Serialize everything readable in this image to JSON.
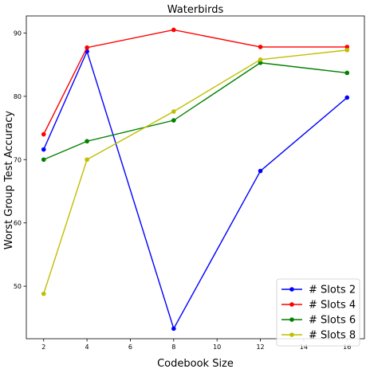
{
  "chart_data": {
    "type": "line",
    "title": "Waterbirds",
    "xlabel": "Codebook Size",
    "ylabel": "Worst Group Test Accuracy",
    "x": [
      2,
      4,
      8,
      12,
      16
    ],
    "xlim": [
      1.2,
      16.8
    ],
    "ylim": [
      41.7,
      92.7
    ],
    "xticks": [
      2,
      4,
      6,
      8,
      10,
      12,
      14,
      16
    ],
    "yticks": [
      50,
      60,
      70,
      80,
      90
    ],
    "grid": false,
    "legend_position": "lower-right",
    "series": [
      {
        "name": "# Slots 2",
        "color": "#0000ff",
        "values": [
          71.6,
          87.1,
          43.3,
          68.2,
          79.8
        ]
      },
      {
        "name": "# Slots 4",
        "color": "#ff0000",
        "values": [
          74.0,
          87.7,
          90.5,
          87.8,
          87.8
        ]
      },
      {
        "name": "# Slots 6",
        "color": "#008000",
        "values": [
          70.0,
          72.9,
          76.2,
          85.3,
          83.7
        ]
      },
      {
        "name": "# Slots 8",
        "color": "#bfbf00",
        "values": [
          48.8,
          70.0,
          77.6,
          85.8,
          87.3
        ]
      }
    ]
  }
}
